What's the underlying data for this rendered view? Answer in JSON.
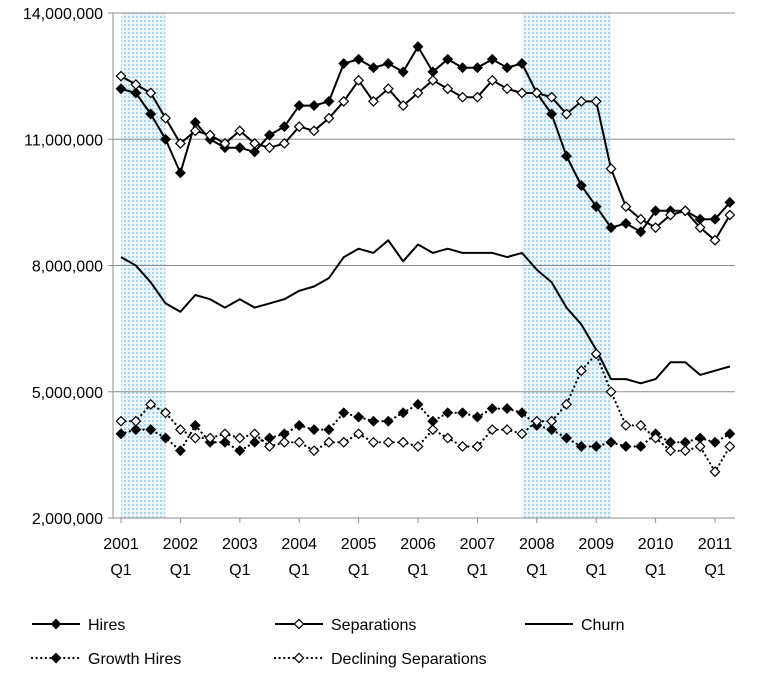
{
  "chart_data": {
    "type": "line",
    "title": "",
    "xlabel": "",
    "ylabel": "",
    "ylim": [
      2000000,
      14000000
    ],
    "y_ticks": [
      2000000,
      5000000,
      8000000,
      11000000,
      14000000
    ],
    "y_tick_labels": [
      "2,000,000",
      "5,000,000",
      "8,000,000",
      "11,000,000",
      "14,000,000"
    ],
    "x_tick_labels": [
      {
        "year": "2001",
        "q": "Q1",
        "index": 0
      },
      {
        "year": "2002",
        "q": "Q1",
        "index": 4
      },
      {
        "year": "2003",
        "q": "Q1",
        "index": 8
      },
      {
        "year": "2004",
        "q": "Q1",
        "index": 12
      },
      {
        "year": "2005",
        "q": "Q1",
        "index": 16
      },
      {
        "year": "2006",
        "q": "Q1",
        "index": 20
      },
      {
        "year": "2007",
        "q": "Q1",
        "index": 24
      },
      {
        "year": "2008",
        "q": "Q1",
        "index": 28
      },
      {
        "year": "2009",
        "q": "Q1",
        "index": 32
      },
      {
        "year": "2010",
        "q": "Q1",
        "index": 36
      },
      {
        "year": "2011",
        "q": "Q1",
        "index": 40
      }
    ],
    "recessions": [
      [
        0,
        3
      ],
      [
        27,
        33
      ]
    ],
    "legend_position": "bottom",
    "series": [
      {
        "name": "Hires",
        "style": "solid-filled-diamond",
        "values": [
          12200000,
          12100000,
          11600000,
          11000000,
          10200000,
          11400000,
          11000000,
          10800000,
          10800000,
          10700000,
          11100000,
          11300000,
          11800000,
          11800000,
          11900000,
          12800000,
          12900000,
          12700000,
          12800000,
          12600000,
          13200000,
          12600000,
          12900000,
          12700000,
          12700000,
          12900000,
          12700000,
          12800000,
          12100000,
          11600000,
          10600000,
          9900000,
          9400000,
          8900000,
          9000000,
          8800000,
          9300000,
          9300000,
          9300000,
          9100000,
          9100000,
          9500000
        ]
      },
      {
        "name": "Separations",
        "style": "solid-open-diamond",
        "values": [
          12500000,
          12300000,
          12100000,
          11500000,
          10900000,
          11200000,
          11100000,
          10900000,
          11200000,
          10900000,
          10800000,
          10900000,
          11300000,
          11200000,
          11500000,
          11900000,
          12400000,
          11900000,
          12200000,
          11800000,
          12100000,
          12400000,
          12200000,
          12000000,
          12000000,
          12400000,
          12200000,
          12100000,
          12100000,
          12000000,
          11600000,
          11900000,
          11900000,
          10300000,
          9400000,
          9100000,
          8900000,
          9200000,
          9300000,
          8900000,
          8600000,
          9200000
        ]
      },
      {
        "name": "Churn",
        "style": "solid-line",
        "values": [
          8200000,
          8000000,
          7600000,
          7100000,
          6900000,
          7300000,
          7200000,
          7000000,
          7200000,
          7000000,
          7100000,
          7200000,
          7400000,
          7500000,
          7700000,
          8200000,
          8400000,
          8300000,
          8600000,
          8100000,
          8500000,
          8300000,
          8400000,
          8300000,
          8300000,
          8300000,
          8200000,
          8300000,
          7900000,
          7600000,
          7000000,
          6600000,
          6000000,
          5300000,
          5300000,
          5200000,
          5300000,
          5700000,
          5700000,
          5400000,
          5500000,
          5600000
        ]
      },
      {
        "name": "Growth Hires",
        "style": "dotted-filled-diamond",
        "values": [
          4000000,
          4100000,
          4100000,
          3900000,
          3600000,
          4200000,
          3800000,
          3800000,
          3600000,
          3800000,
          3900000,
          4000000,
          4200000,
          4100000,
          4100000,
          4500000,
          4400000,
          4300000,
          4300000,
          4500000,
          4700000,
          4300000,
          4500000,
          4500000,
          4400000,
          4600000,
          4600000,
          4500000,
          4200000,
          4100000,
          3900000,
          3700000,
          3700000,
          3800000,
          3700000,
          3700000,
          4000000,
          3800000,
          3800000,
          3900000,
          3800000,
          4000000
        ]
      },
      {
        "name": "Declining Separations",
        "style": "dotted-open-diamond",
        "values": [
          4300000,
          4300000,
          4700000,
          4500000,
          4100000,
          3900000,
          3900000,
          4000000,
          3900000,
          4000000,
          3700000,
          3800000,
          3800000,
          3600000,
          3800000,
          3800000,
          4000000,
          3800000,
          3800000,
          3800000,
          3700000,
          4100000,
          3900000,
          3700000,
          3700000,
          4100000,
          4100000,
          4000000,
          4300000,
          4300000,
          4700000,
          5500000,
          5900000,
          5000000,
          4200000,
          4200000,
          3900000,
          3600000,
          3600000,
          3700000,
          3100000,
          3700000
        ]
      }
    ]
  }
}
